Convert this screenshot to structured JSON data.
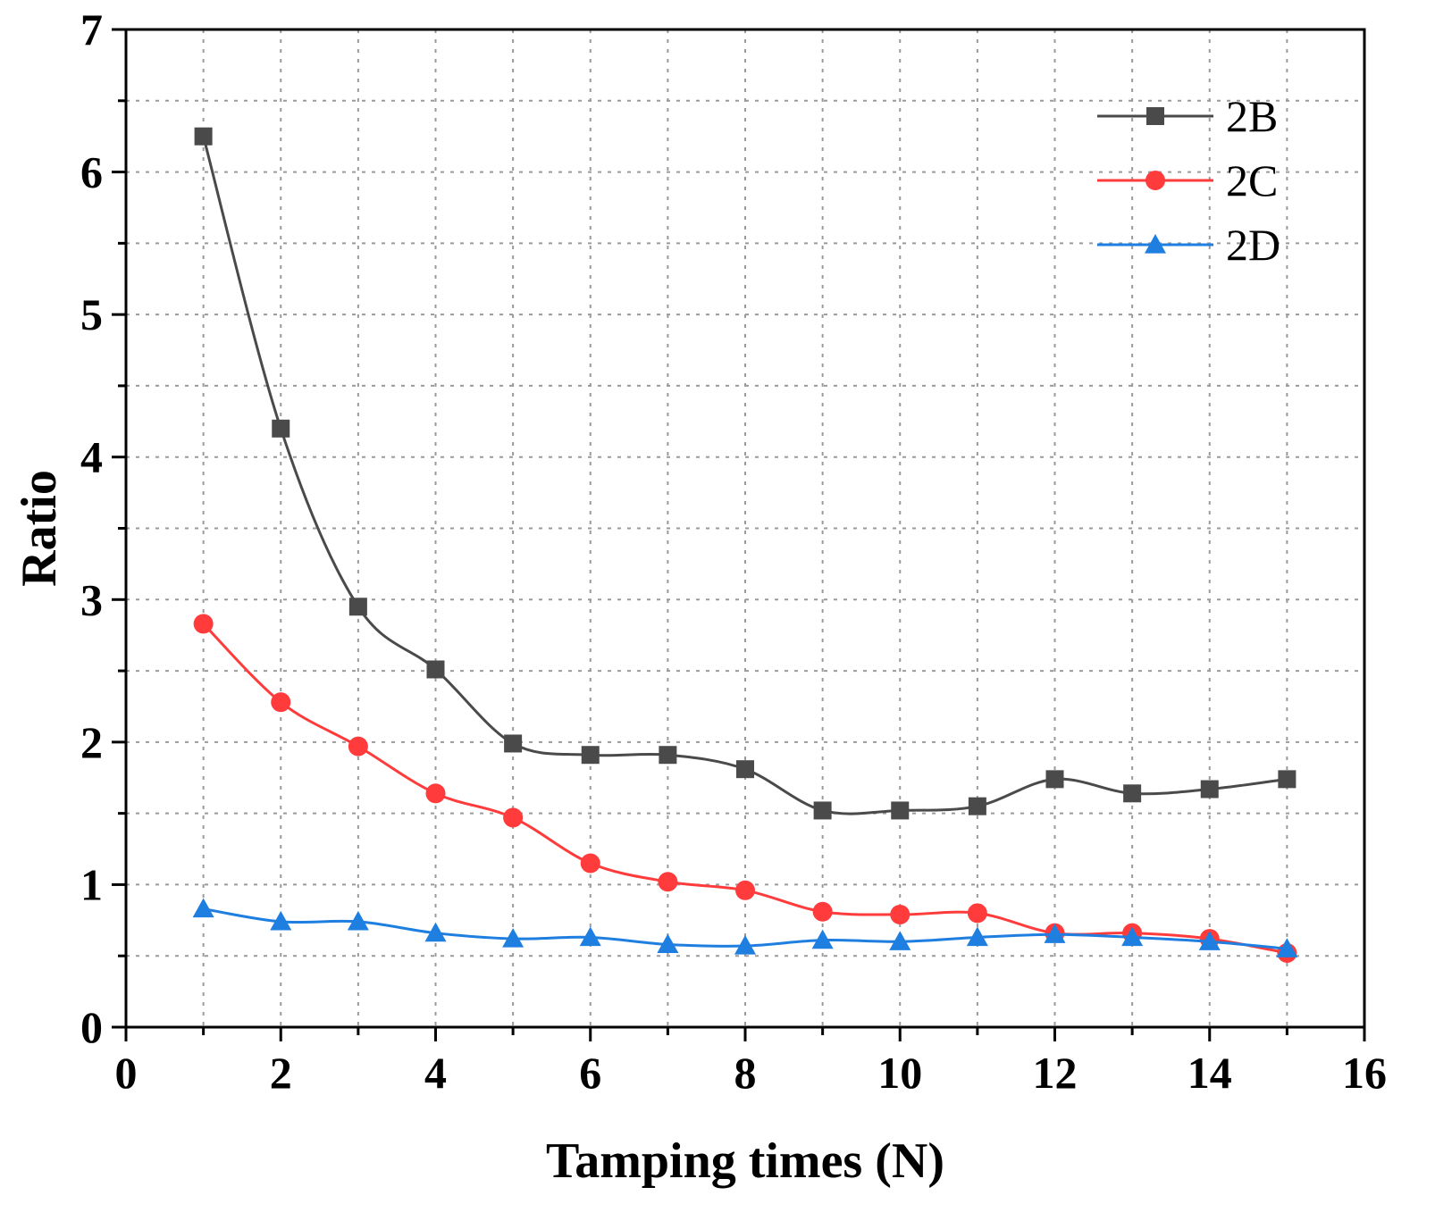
{
  "chart_data": {
    "type": "line",
    "title": "",
    "xlabel": "Tamping times (N)",
    "ylabel": "Ratio",
    "xlim": [
      0,
      16
    ],
    "ylim": [
      0,
      7
    ],
    "xticks": [
      0,
      2,
      4,
      6,
      8,
      10,
      12,
      14,
      16
    ],
    "yticks": [
      0,
      1,
      2,
      3,
      4,
      5,
      6,
      7
    ],
    "grid": true,
    "legend_position": "top-right",
    "x": [
      1,
      2,
      3,
      4,
      5,
      6,
      7,
      8,
      9,
      10,
      11,
      12,
      13,
      14,
      15
    ],
    "series": [
      {
        "name": "2B",
        "color": "#4a4a4a",
        "marker": "square",
        "values": [
          6.25,
          4.2,
          2.95,
          2.51,
          1.99,
          1.91,
          1.91,
          1.81,
          1.52,
          1.52,
          1.55,
          1.74,
          1.64,
          1.67,
          1.74
        ]
      },
      {
        "name": "2C",
        "color": "#ff3b3b",
        "marker": "circle",
        "values": [
          2.83,
          2.28,
          1.97,
          1.64,
          1.47,
          1.15,
          1.02,
          0.96,
          0.81,
          0.79,
          0.8,
          0.66,
          0.66,
          0.62,
          0.52
        ]
      },
      {
        "name": "2D",
        "color": "#1e7fe0",
        "marker": "triangle",
        "values": [
          0.83,
          0.74,
          0.74,
          0.66,
          0.62,
          0.63,
          0.58,
          0.57,
          0.61,
          0.6,
          0.63,
          0.65,
          0.63,
          0.6,
          0.55
        ]
      }
    ]
  }
}
